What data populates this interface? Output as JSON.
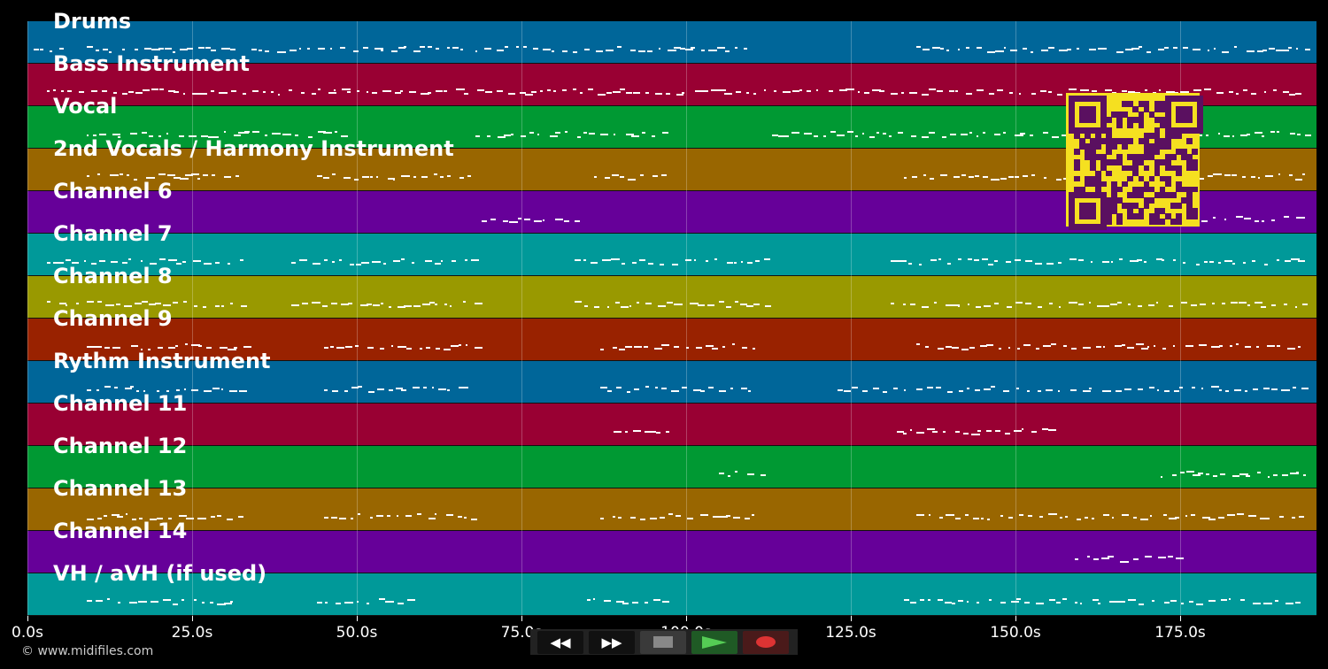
{
  "tracks": [
    {
      "label": "Drums",
      "color": "#006699",
      "notes": [
        [
          1,
          5
        ],
        [
          9,
          32
        ],
        [
          34,
          66
        ],
        [
          68,
          99
        ],
        [
          99,
          110
        ],
        [
          135,
          194
        ]
      ]
    },
    {
      "label": "Bass Instrument",
      "color": "#990033",
      "notes": [
        [
          3,
          194
        ]
      ]
    },
    {
      "label": "Vocal",
      "color": "#009933",
      "notes": [
        [
          9,
          33
        ],
        [
          32,
          48
        ],
        [
          68,
          97
        ],
        [
          113,
          194
        ]
      ]
    },
    {
      "label": "2nd Vocals / Harmony Instrument",
      "color": "#996600",
      "notes": [
        [
          9,
          32
        ],
        [
          44,
          67
        ],
        [
          86,
          97
        ],
        [
          133,
          194
        ]
      ]
    },
    {
      "label": "Channel 6",
      "color": "#660099",
      "notes": [
        [
          69,
          84
        ],
        [
          176,
          194
        ]
      ]
    },
    {
      "label": "Channel 7",
      "color": "#009999",
      "notes": [
        [
          3,
          34
        ],
        [
          40,
          68
        ],
        [
          83,
          112
        ],
        [
          131,
          194
        ]
      ]
    },
    {
      "label": "Channel 8",
      "color": "#999900",
      "notes": [
        [
          3,
          34
        ],
        [
          40,
          68
        ],
        [
          83,
          112
        ],
        [
          131,
          194
        ]
      ]
    },
    {
      "label": "Channel 9",
      "color": "#992200",
      "notes": [
        [
          9,
          33
        ],
        [
          45,
          68
        ],
        [
          87,
          111
        ],
        [
          135,
          194
        ]
      ]
    },
    {
      "label": "Rythm Instrument",
      "color": "#006699",
      "notes": [
        [
          9,
          33
        ],
        [
          45,
          68
        ],
        [
          87,
          110
        ],
        [
          123,
          194
        ]
      ]
    },
    {
      "label": "Channel 11",
      "color": "#990033",
      "notes": [
        [
          89,
          98
        ],
        [
          132,
          155
        ]
      ]
    },
    {
      "label": "Channel 12",
      "color": "#009933",
      "notes": [
        [
          105,
          112
        ],
        [
          172,
          194
        ]
      ]
    },
    {
      "label": "Channel 13",
      "color": "#996600",
      "notes": [
        [
          9,
          33
        ],
        [
          45,
          68
        ],
        [
          87,
          110
        ],
        [
          135,
          194
        ]
      ]
    },
    {
      "label": "Channel 14",
      "color": "#660099",
      "notes": [
        [
          159,
          175
        ]
      ]
    },
    {
      "label": "VH / aVH (if used)",
      "color": "#009999",
      "notes": [
        [
          9,
          31
        ],
        [
          44,
          58
        ],
        [
          85,
          97
        ],
        [
          133,
          194
        ]
      ]
    }
  ],
  "axis": {
    "max_seconds": 195.7,
    "ticks": [
      {
        "value": 0,
        "label": "0.0s"
      },
      {
        "value": 25,
        "label": "25.0s"
      },
      {
        "value": 50,
        "label": "50.0s"
      },
      {
        "value": 75,
        "label": "75.0s"
      },
      {
        "value": 100,
        "label": "100.0s"
      },
      {
        "value": 125,
        "label": "125.0s"
      },
      {
        "value": 150,
        "label": "150.0s"
      },
      {
        "value": 175,
        "label": "175.0s"
      }
    ]
  },
  "copyright": "© www.midifiles.com",
  "transport": {
    "rewind": "⯇⯇",
    "forward": "⯈⯈",
    "stop": "■",
    "play": "▶",
    "record": "●"
  }
}
